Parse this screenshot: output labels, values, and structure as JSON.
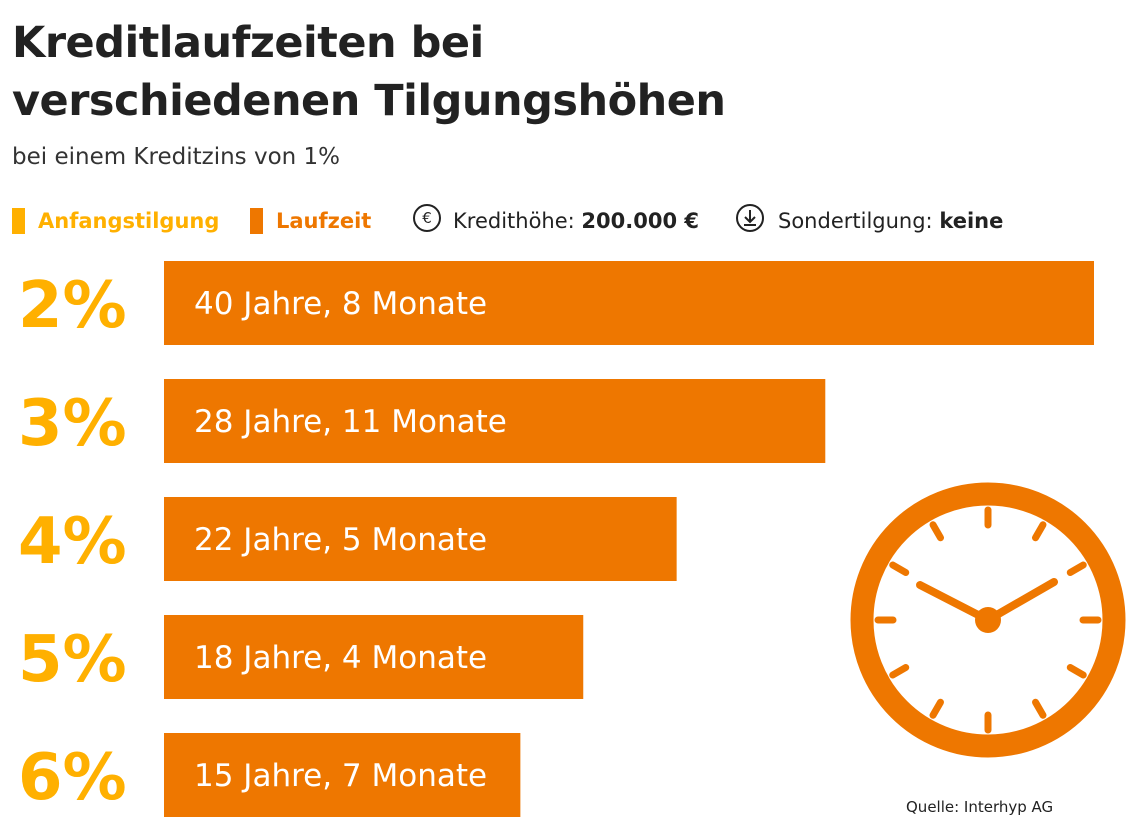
{
  "title_line1": "Kreditlaufzeiten bei",
  "title_line2": "verschiedenen Tilgungshöhen",
  "subtitle": "bei einem Kreditzins von 1%",
  "legend": {
    "anfangstilgung": "Anfangstilgung",
    "laufzeit": "Laufzeit",
    "kredithoehe_label": "Kredithöhe:",
    "kredithoehe_value": "200.000 €",
    "sondertilgung_label": "Sondertilgung:",
    "sondertilgung_value": "keine",
    "euro_symbol": "€"
  },
  "source": "Quelle: Interhyp AG",
  "colors": {
    "anfangstilgung": "#FFB000",
    "laufzeit": "#EE7700",
    "text": "#222222"
  },
  "icons": {
    "euro": "euro-circle-icon",
    "sondertilgung": "download-circle-icon",
    "clock": "clock-icon"
  },
  "chart_data": {
    "type": "bar",
    "orientation": "horizontal",
    "categories": [
      "2%",
      "3%",
      "4%",
      "5%",
      "6%"
    ],
    "values": [
      40.667,
      28.917,
      22.417,
      18.333,
      15.583
    ],
    "value_unit": "Jahre",
    "labels": [
      "40 Jahre, 8 Monate",
      "28 Jahre, 11 Monate",
      "22 Jahre, 5 Monate",
      "18 Jahre, 4 Monate",
      "15 Jahre, 7 Monate"
    ],
    "xlim": [
      0,
      40.667
    ],
    "grid": false,
    "legend_position": "top-left"
  }
}
